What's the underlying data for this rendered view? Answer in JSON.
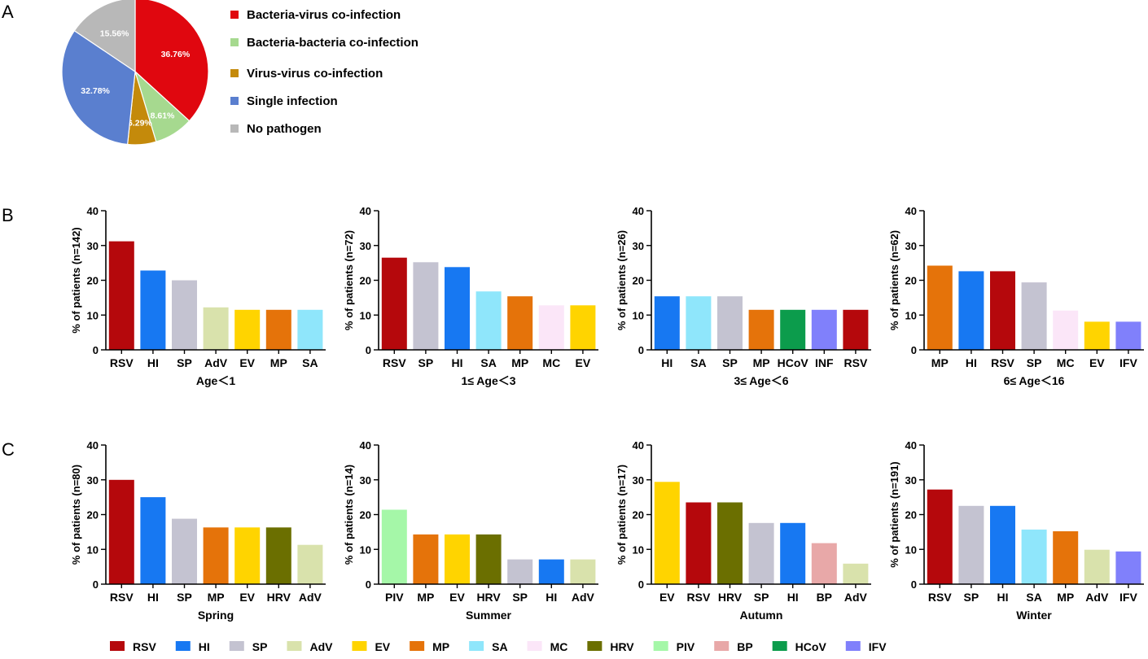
{
  "panels": {
    "a": "A",
    "b": "B",
    "c": "C"
  },
  "colors": {
    "RSV": "#b5080c",
    "HI": "#1778f2",
    "SP": "#c4c3d1",
    "AdV": "#d9e2ac",
    "EV": "#ffd400",
    "MP": "#e5730a",
    "SA": "#8fe6fb",
    "MC": "#fbe6f8",
    "HRV": "#6b6f00",
    "PIV": "#a5f7a8",
    "BP": "#e8a8a8",
    "HCoV": "#0c9c4c",
    "IFV": "#8080fb",
    "INF": "#8080fb"
  },
  "chart_data": [
    {
      "id": "pie",
      "type": "pie",
      "title": "",
      "slices": [
        {
          "name": "Bacteria-virus co-infection",
          "value": 36.76,
          "label": "36.76%",
          "color": "#e0070f"
        },
        {
          "name": "Bacteria-bacteria co-infection",
          "value": 8.61,
          "label": "8.61%",
          "color": "#a6d98f"
        },
        {
          "name": "Virus-virus co-infection",
          "value": 6.29,
          "label": "6.29%",
          "color": "#c48a0b"
        },
        {
          "name": "Single infection",
          "value": 32.78,
          "label": "32.78%",
          "color": "#5a7fcf"
        },
        {
          "name": "No pathogen",
          "value": 15.56,
          "label": "15.56%",
          "color": "#b8b8b8"
        }
      ]
    },
    {
      "id": "b1",
      "type": "bar",
      "ylabel": "% of patients (n=142)",
      "xlabel": "Age＜1",
      "ylim": [
        0,
        40
      ],
      "yticks": [
        "0",
        "10",
        "20",
        "30",
        "40"
      ],
      "categories": [
        "RSV",
        "HI",
        "SP",
        "AdV",
        "EV",
        "MP",
        "SA"
      ],
      "values": [
        31.2,
        22.8,
        20.0,
        12.2,
        11.5,
        11.5,
        11.5
      ]
    },
    {
      "id": "b2",
      "type": "bar",
      "ylabel": "% of patients (n=72)",
      "xlabel": "1≤ Age＜3",
      "ylim": [
        0,
        40
      ],
      "yticks": [
        "0",
        "10",
        "20",
        "30",
        "40"
      ],
      "categories": [
        "RSV",
        "SP",
        "HI",
        "SA",
        "MP",
        "MC",
        "EV"
      ],
      "values": [
        26.5,
        25.2,
        23.8,
        16.8,
        15.4,
        12.8,
        12.8
      ]
    },
    {
      "id": "b3",
      "type": "bar",
      "ylabel": "% of patients (n=26)",
      "xlabel": "3≤ Age＜6",
      "ylim": [
        0,
        40
      ],
      "yticks": [
        "0",
        "10",
        "20",
        "30",
        "40"
      ],
      "categories": [
        "HI",
        "SA",
        "SP",
        "MP",
        "HCoV",
        "INF",
        "RSV"
      ],
      "values": [
        15.4,
        15.4,
        15.4,
        11.5,
        11.5,
        11.5,
        11.5
      ]
    },
    {
      "id": "b4",
      "type": "bar",
      "ylabel": "% of patients (n=62)",
      "xlabel": "6≤ Age＜16",
      "ylim": [
        0,
        40
      ],
      "yticks": [
        "0",
        "10",
        "20",
        "30",
        "40"
      ],
      "categories": [
        "MP",
        "HI",
        "RSV",
        "SP",
        "MC",
        "EV",
        "IFV"
      ],
      "values": [
        24.2,
        22.6,
        22.6,
        19.4,
        11.3,
        8.1,
        8.1
      ]
    },
    {
      "id": "c1",
      "type": "bar",
      "ylabel": "% of patients (n=80)",
      "xlabel": "Spring",
      "ylim": [
        0,
        40
      ],
      "yticks": [
        "0",
        "10",
        "20",
        "30",
        "40"
      ],
      "categories": [
        "RSV",
        "HI",
        "SP",
        "MP",
        "EV",
        "HRV",
        "AdV"
      ],
      "values": [
        30.0,
        25.0,
        18.8,
        16.3,
        16.3,
        16.3,
        11.3
      ]
    },
    {
      "id": "c2",
      "type": "bar",
      "ylabel": "% of patients (n=14)",
      "xlabel": "Summer",
      "ylim": [
        0,
        40
      ],
      "yticks": [
        "0",
        "10",
        "20",
        "30",
        "40"
      ],
      "categories": [
        "PIV",
        "MP",
        "EV",
        "HRV",
        "SP",
        "HI",
        "AdV"
      ],
      "values": [
        21.4,
        14.3,
        14.3,
        14.3,
        7.1,
        7.1,
        7.1
      ]
    },
    {
      "id": "c3",
      "type": "bar",
      "ylabel": "% of patients (n=17)",
      "xlabel": "Autumn",
      "ylim": [
        0,
        40
      ],
      "yticks": [
        "0",
        "10",
        "20",
        "30",
        "40"
      ],
      "categories": [
        "EV",
        "RSV",
        "HRV",
        "SP",
        "HI",
        "BP",
        "AdV"
      ],
      "values": [
        29.4,
        23.5,
        23.5,
        17.6,
        17.6,
        11.8,
        5.9
      ]
    },
    {
      "id": "c4",
      "type": "bar",
      "ylabel": "% of patients (n=191)",
      "xlabel": "Winter",
      "ylim": [
        0,
        40
      ],
      "yticks": [
        "0",
        "10",
        "20",
        "30",
        "40"
      ],
      "categories": [
        "RSV",
        "SP",
        "HI",
        "SA",
        "MP",
        "AdV",
        "IFV"
      ],
      "values": [
        27.2,
        22.5,
        22.5,
        15.7,
        15.2,
        9.9,
        9.4
      ]
    }
  ],
  "bottom_legend": [
    "RSV",
    "HI",
    "SP",
    "AdV",
    "EV",
    "MP",
    "SA",
    "MC",
    "HRV",
    "PIV",
    "BP",
    "HCoV",
    "IFV"
  ]
}
